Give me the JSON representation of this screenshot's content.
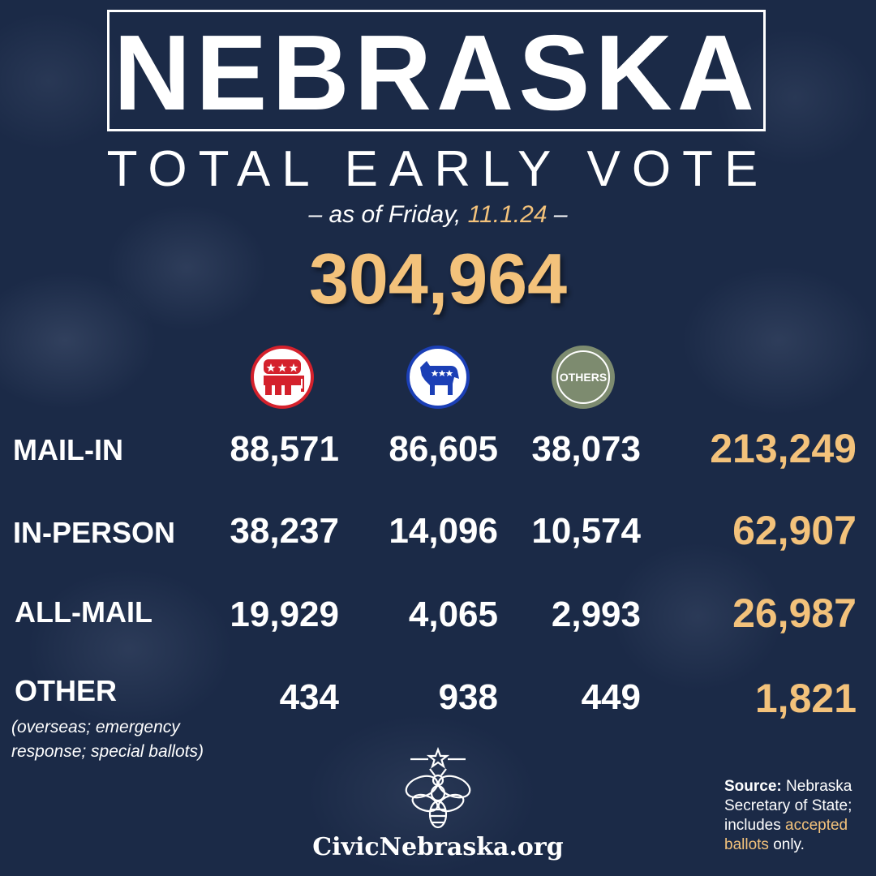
{
  "title": "NEBRASKA",
  "subtitle": "TOTAL EARLY VOTE",
  "as_of": {
    "prefix": "– as of Friday, ",
    "date": "11.1.24",
    "suffix": " –"
  },
  "total": "304,964",
  "parties": {
    "republican_icon": "republican-elephant-icon",
    "democrat_icon": "democratic-donkey-icon",
    "others_label": "OTHERS"
  },
  "rows": [
    {
      "label": "MAIL-IN",
      "rep": "88,571",
      "dem": "86,605",
      "oth": "38,073",
      "total": "213,249"
    },
    {
      "label": "IN-PERSON",
      "rep": "38,237",
      "dem": "14,096",
      "oth": "10,574",
      "total": "62,907"
    },
    {
      "label": "ALL-MAIL",
      "rep": "19,929",
      "dem": "4,065",
      "oth": "2,993",
      "total": "26,987"
    },
    {
      "label": "OTHER",
      "rep": "434",
      "dem": "938",
      "oth": "449",
      "total": "1,821"
    }
  ],
  "other_note": [
    "(overseas; emergency",
    "response; special ballots)"
  ],
  "footer": {
    "logo_icon": "bee-star-logo-icon",
    "site": "CivicNebraska.org"
  },
  "source": {
    "label": "Source:",
    "text1": " Nebraska Secretary of State; includes ",
    "accent": "accepted ballots",
    "text2": " only."
  },
  "colors": {
    "background": "#1b2a47",
    "accent": "#f3c27b",
    "republican": "#d4212c",
    "democrat": "#1b3fb6",
    "others": "#7d8b6f"
  }
}
